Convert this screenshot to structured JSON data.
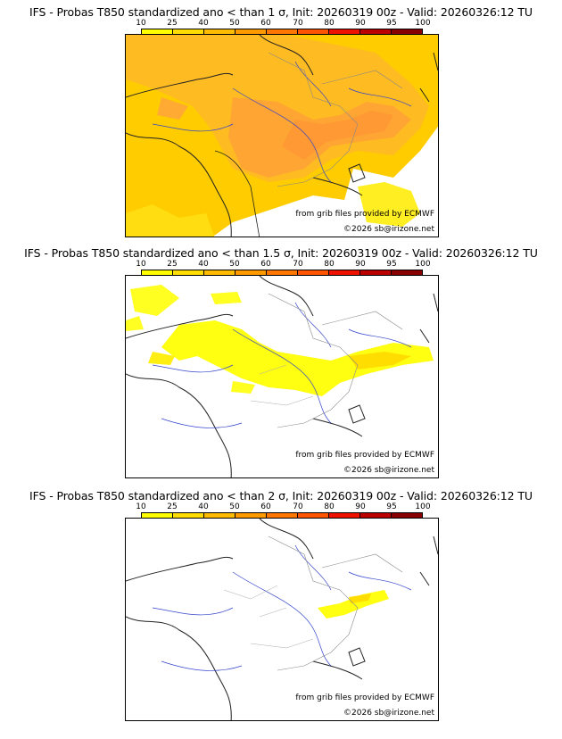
{
  "colorbar": {
    "ticks": [
      "10",
      "25",
      "40",
      "50",
      "60",
      "70",
      "80",
      "90",
      "95",
      "100"
    ],
    "colors": [
      "#ffff00",
      "#ffdd00",
      "#ffbb00",
      "#ff9900",
      "#ff7700",
      "#ff5500",
      "#ee1100",
      "#bb0000",
      "#880000"
    ]
  },
  "panels": [
    {
      "title": "IFS - Probas T850  standardized ano < than 1 σ, Init: 20260319 00z - Valid: 20260326:12 TU",
      "source": "from grib files provided by ECMWF",
      "copyright": "©2026 sb@irizone.net"
    },
    {
      "title": "IFS - Probas T850  standardized ano < than 1.5 σ, Init: 20260319 00z - Valid: 20260326:12 TU",
      "source": "from grib files provided by ECMWF",
      "copyright": "©2026 sb@irizone.net"
    },
    {
      "title": "IFS - Probas T850  standardized ano < than 2 σ, Init: 20260319 00z - Valid: 20260326:12 TU",
      "source": "from grib files provided by ECMWF",
      "copyright": "©2026 sb@irizone.net"
    }
  ]
}
